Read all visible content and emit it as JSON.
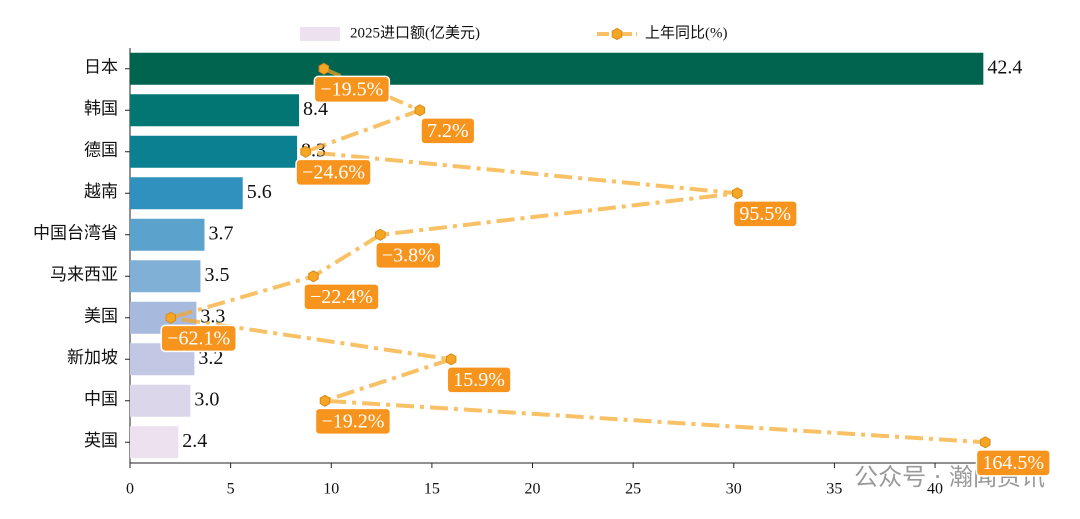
{
  "chart_data": {
    "type": "bar",
    "orientation": "horizontal",
    "categories": [
      "日本",
      "韩国",
      "德国",
      "越南",
      "中国台湾省",
      "马来西亚",
      "美国",
      "新加坡",
      "中国",
      "英国"
    ],
    "series": [
      {
        "name": "2025进口额(亿美元)",
        "type": "bar",
        "colors": [
          "#01644f",
          "#017672",
          "#0b8090",
          "#3090be",
          "#5ba2cc",
          "#80b0d6",
          "#a7badd",
          "#c2c7e4",
          "#dbd6ea",
          "#ede1f0"
        ],
        "values": [
          42.4,
          8.4,
          8.3,
          5.6,
          3.7,
          3.5,
          3.3,
          3.2,
          3.0,
          2.4
        ],
        "value_labels": [
          "42.4",
          "8.4",
          "8.3",
          "5.6",
          "3.7",
          "3.5",
          "3.3",
          "3.2",
          "3.0",
          "2.4"
        ]
      },
      {
        "name": "上年同比(%)",
        "type": "line",
        "axis": "x2",
        "color": "#f5a623",
        "values": [
          -19.5,
          7.2,
          -24.6,
          95.5,
          -3.8,
          -22.4,
          -62.1,
          15.9,
          -19.2,
          164.5
        ],
        "value_labels": [
          "−19.5%",
          "7.2%",
          "−24.6%",
          "95.5%",
          "−3.8%",
          "−22.4%",
          "−62.1%",
          "15.9%",
          "−19.2%",
          "164.5%"
        ]
      }
    ],
    "xlim": [
      0,
      44.52
    ],
    "xticks": [
      0,
      5,
      10,
      15,
      20,
      25,
      30,
      35,
      40
    ],
    "x2lim": [
      -73.43,
      175.83
    ],
    "legend": "top",
    "watermark": "公众号 · 瀚闻资讯"
  }
}
